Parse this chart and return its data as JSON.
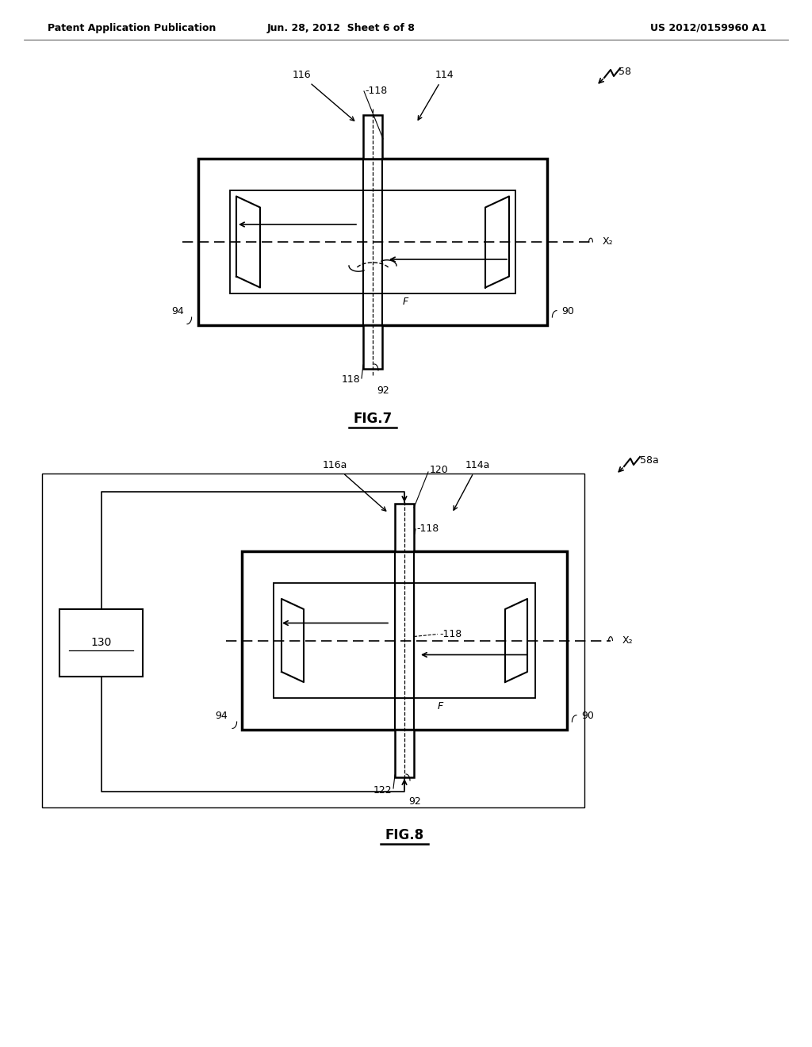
{
  "bg_color": "#ffffff",
  "header_left": "Patent Application Publication",
  "header_center": "Jun. 28, 2012  Sheet 6 of 8",
  "header_right": "US 2012/0159960 A1",
  "fig7_label": "FIG.7",
  "fig8_label": "FIG.8",
  "line_color": "#000000",
  "line_width": 1.5,
  "thin_line": 0.8
}
